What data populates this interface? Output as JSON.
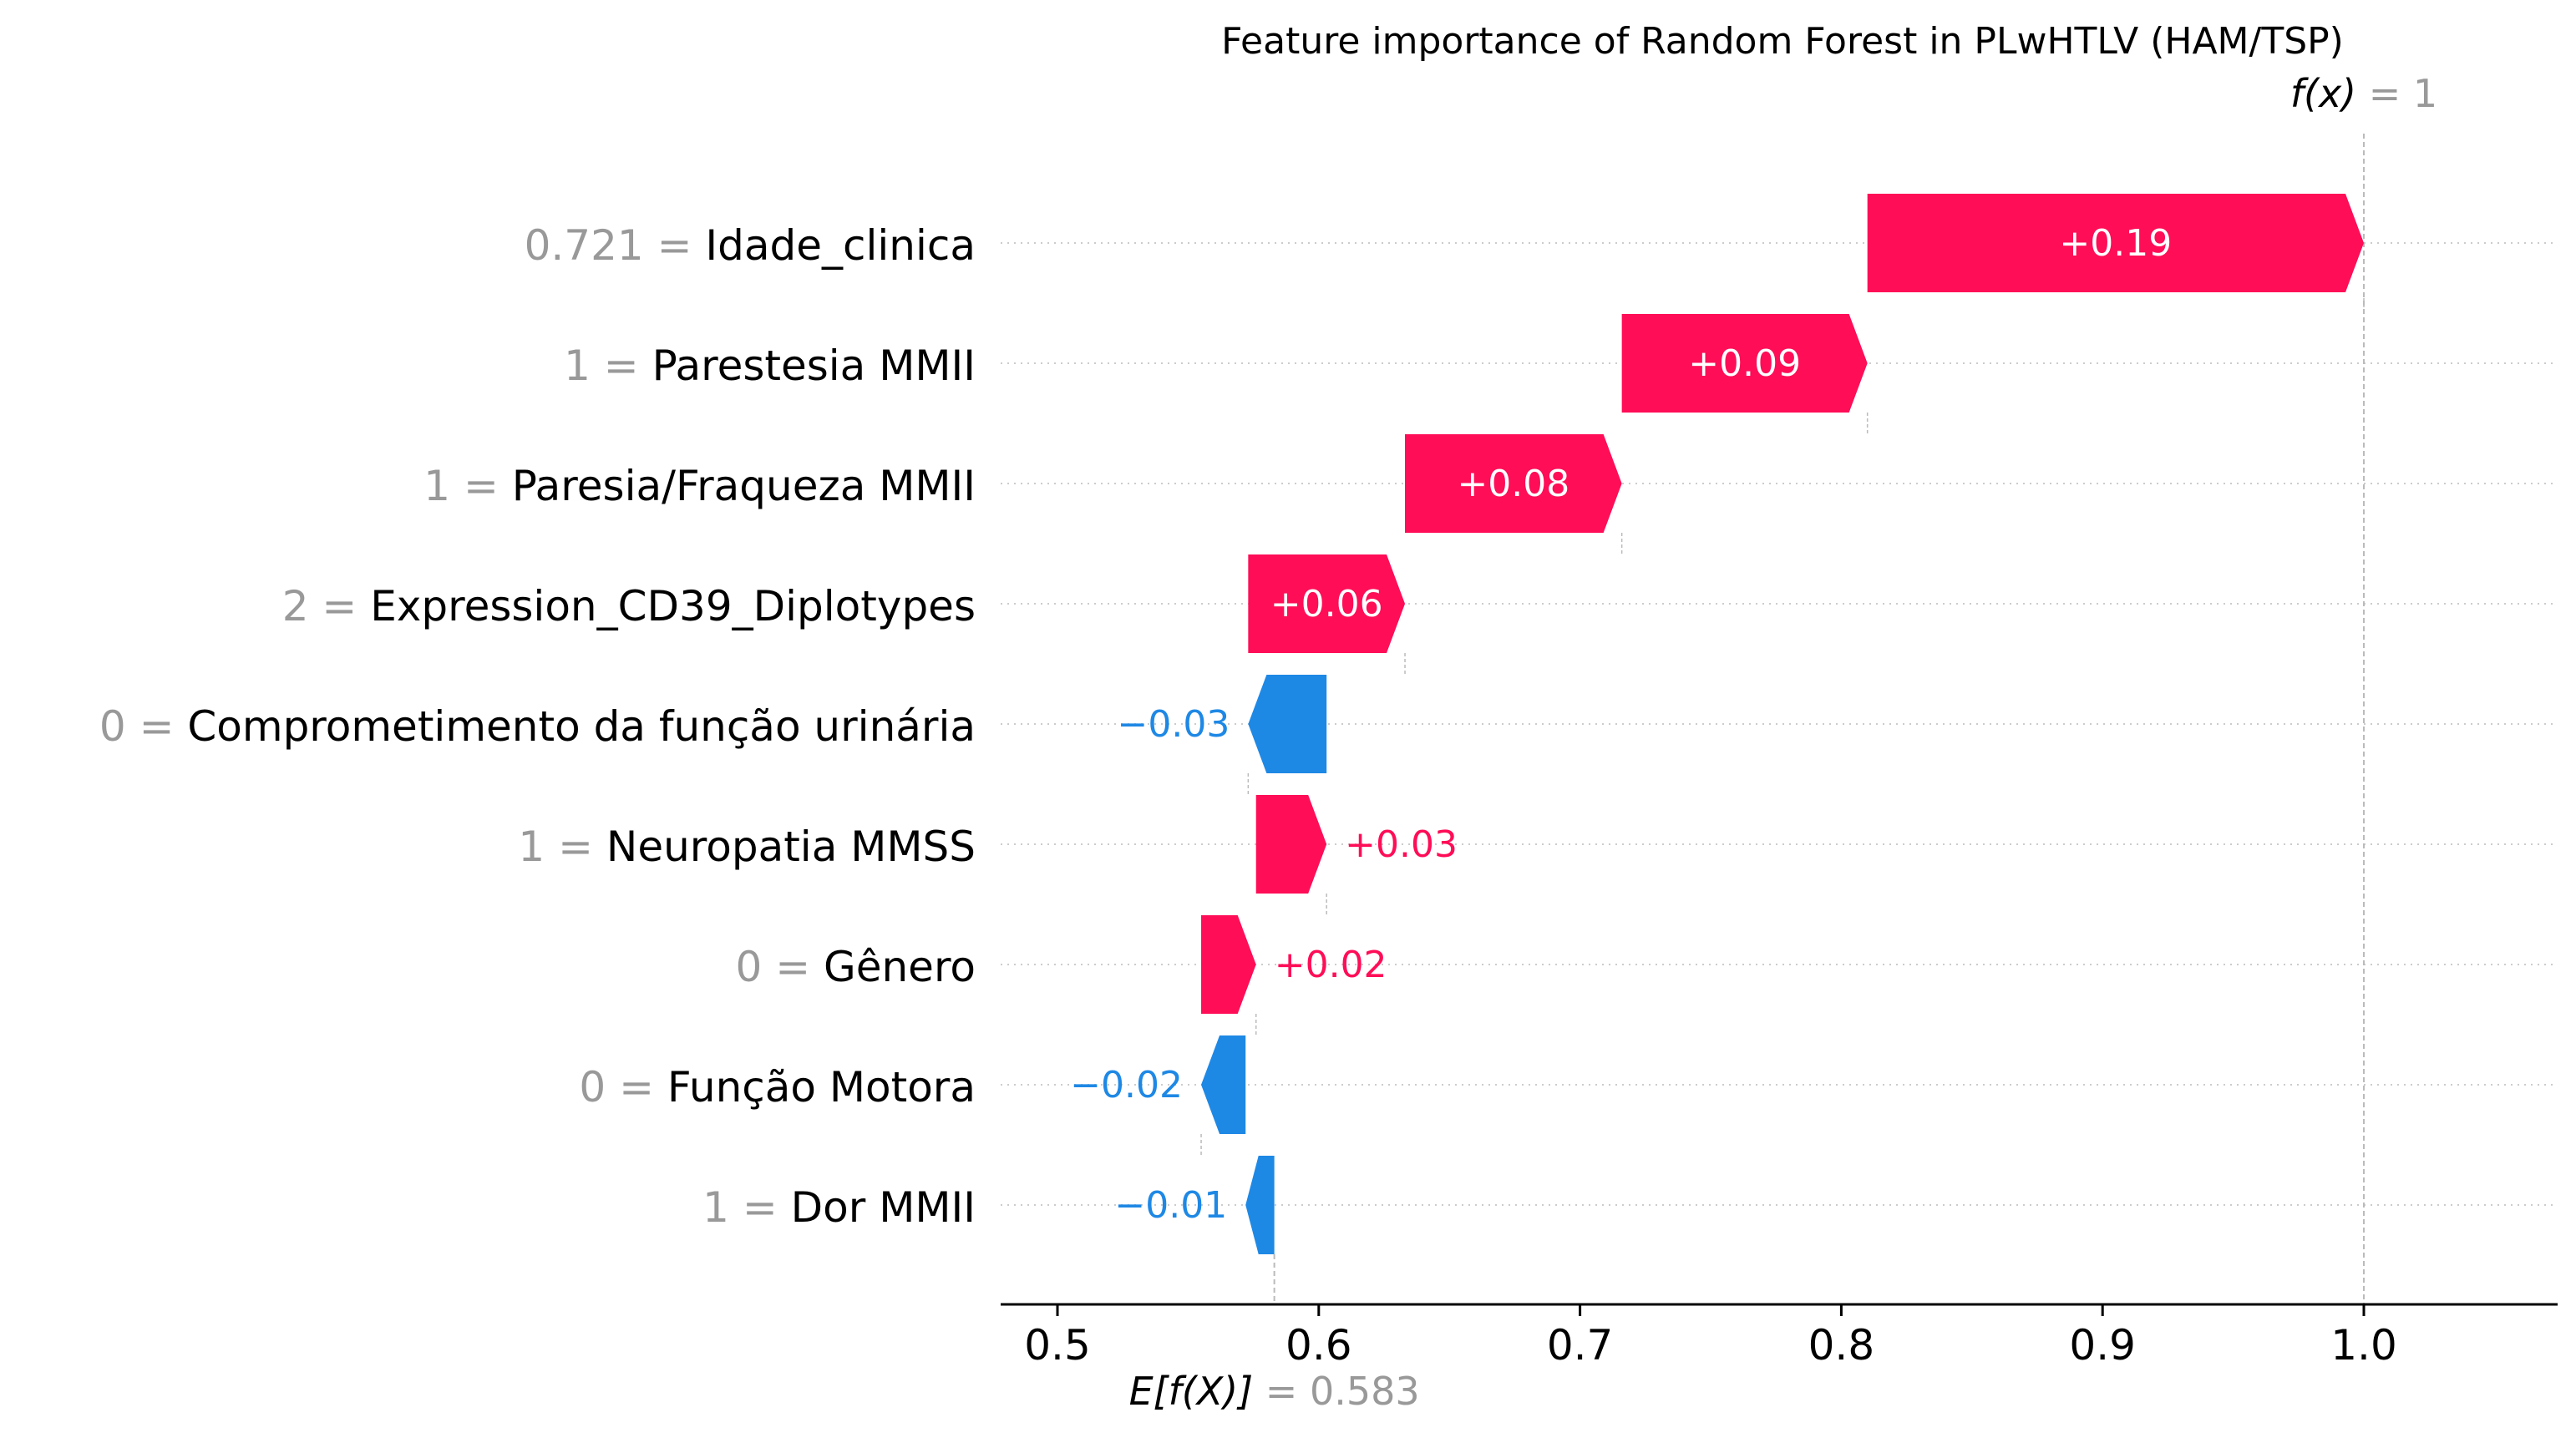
{
  "chart_data": {
    "type": "waterfall",
    "title": "Feature importance of Random Forest in PLwHTLV (HAM/TSP)",
    "output_label": "f(x)",
    "output_value": "1",
    "base_label": "E[f(X)]",
    "base_value": "0.583",
    "base_num": 0.583,
    "final_num": 1.0,
    "xlim": [
      0.48,
      1.075
    ],
    "ticks": [
      0.5,
      0.6,
      0.7,
      0.8,
      0.9,
      1.0
    ],
    "tick_labels": [
      "0.5",
      "0.6",
      "0.7",
      "0.8",
      "0.9",
      "1.0"
    ],
    "grid": "dotted horizontal per feature",
    "colors": {
      "positive": "#ff0d57",
      "negative": "#1e88e5",
      "value_gray": "#999999",
      "text": "#000000",
      "connector": "#bbbbbb"
    },
    "features": [
      {
        "value": "0.721",
        "name": "Idade_clinica",
        "contribution": 0.19,
        "label": "+0.19",
        "start": 0.81,
        "end": 1.0
      },
      {
        "value": "1",
        "name": "Parestesia MMII",
        "contribution": 0.09,
        "label": "+0.09",
        "start": 0.716,
        "end": 0.81
      },
      {
        "value": "1",
        "name": "Paresia/Fraqueza MMII",
        "contribution": 0.08,
        "label": "+0.08",
        "start": 0.633,
        "end": 0.716
      },
      {
        "value": "2",
        "name": "Expression_CD39_Diplotypes",
        "contribution": 0.06,
        "label": "+0.06",
        "start": 0.573,
        "end": 0.633
      },
      {
        "value": "0",
        "name": "Comprometimento da função urinária",
        "contribution": -0.03,
        "label": "−0.03",
        "start": 0.603,
        "end": 0.573
      },
      {
        "value": "1",
        "name": "Neuropatia MMSS",
        "contribution": 0.03,
        "label": "+0.03",
        "start": 0.576,
        "end": 0.603
      },
      {
        "value": "0",
        "name": "Gênero",
        "contribution": 0.02,
        "label": "+0.02",
        "start": 0.555,
        "end": 0.576
      },
      {
        "value": "0",
        "name": "Função Motora",
        "contribution": -0.02,
        "label": "−0.02",
        "start": 0.572,
        "end": 0.555
      },
      {
        "value": "1",
        "name": "Dor MMII",
        "contribution": -0.01,
        "label": "−0.01",
        "start": 0.583,
        "end": 0.572
      }
    ]
  }
}
